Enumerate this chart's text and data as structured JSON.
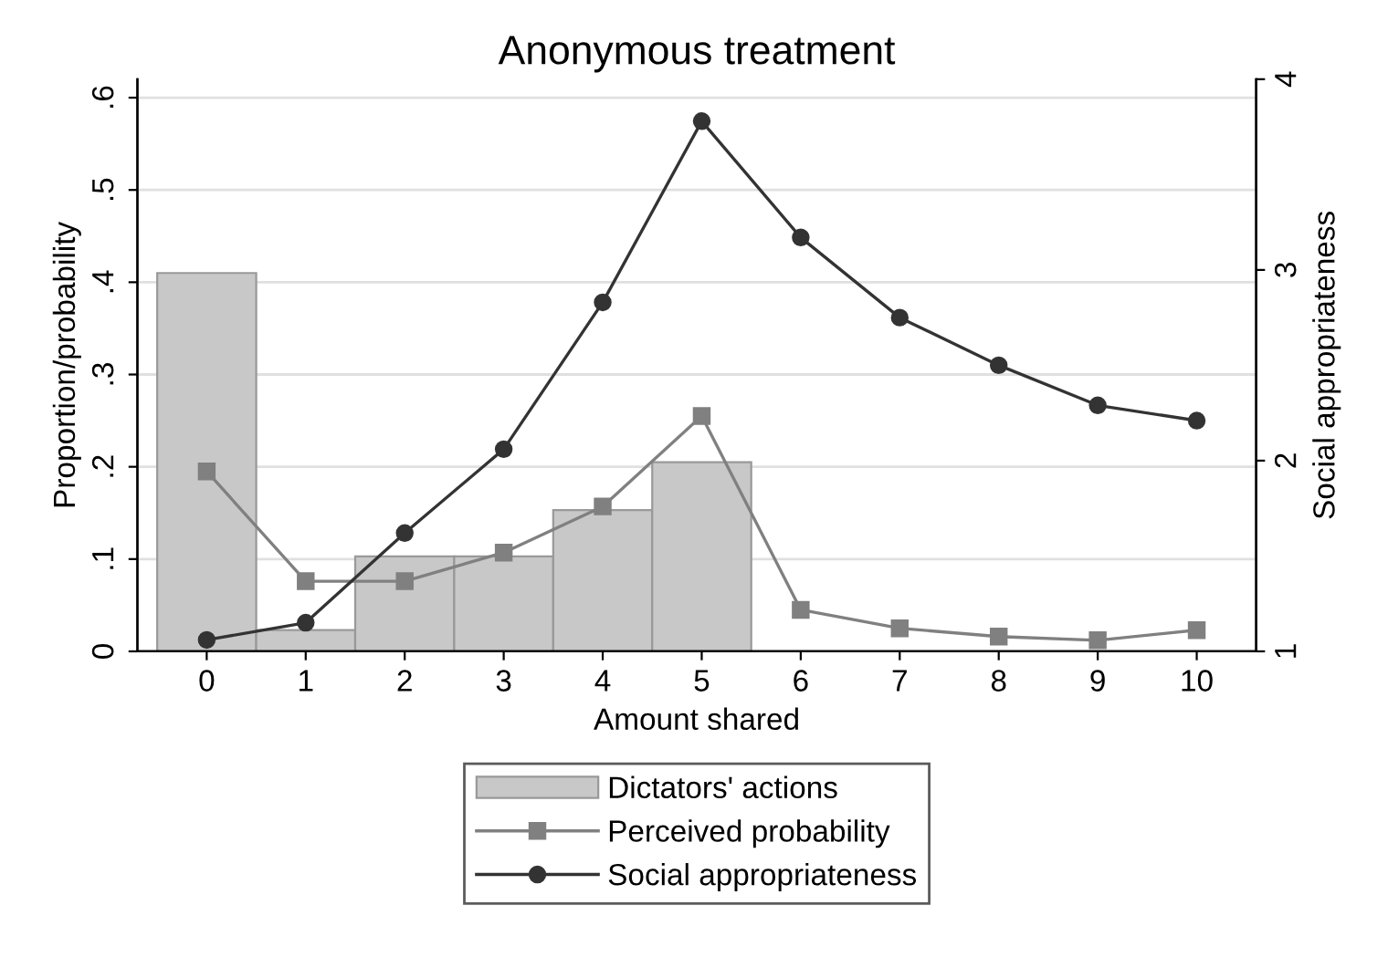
{
  "chart_data": {
    "type": "bar",
    "title": "Anonymous treatment",
    "xlabel": "Amount shared",
    "ylabel": "Proportion/probability",
    "y2label": "Social appropriateness",
    "x": [
      0,
      1,
      2,
      3,
      4,
      5,
      6,
      7,
      8,
      9,
      10
    ],
    "xlim": [
      -0.7,
      10.6
    ],
    "xticks": [
      0,
      1,
      2,
      3,
      4,
      5,
      6,
      7,
      8,
      9,
      10
    ],
    "ylim": [
      0,
      0.62
    ],
    "yticks": [
      {
        "value": 0,
        "label": "0"
      },
      {
        "value": 0.1,
        "label": ".1"
      },
      {
        "value": 0.2,
        "label": ".2"
      },
      {
        "value": 0.3,
        "label": ".3"
      },
      {
        "value": 0.4,
        "label": ".4"
      },
      {
        "value": 0.5,
        "label": ".5"
      },
      {
        "value": 0.6,
        "label": ".6"
      }
    ],
    "y2lim": [
      1,
      4.0
    ],
    "y2ticks": [
      1,
      2,
      3,
      4
    ],
    "grid": "y",
    "legend": "bottom",
    "series": [
      {
        "name": "Dictators' actions",
        "color": "#c8c8c8",
        "values": [
          0.41,
          0.023,
          0.103,
          0.103,
          0.153,
          0.205,
          0,
          0,
          0,
          0,
          0
        ]
      },
      {
        "name": "Perceived probability",
        "type": "line",
        "color": "#808080",
        "marker": "square",
        "values": [
          0.195,
          0.076,
          0.076,
          0.107,
          0.157,
          0.255,
          0.045,
          0.025,
          0.016,
          0.012,
          0.023
        ]
      },
      {
        "name": "Social appropriateness",
        "type": "line",
        "axis": "y2",
        "color": "#333333",
        "marker": "circle",
        "values": [
          1.06,
          1.15,
          1.62,
          2.06,
          2.83,
          3.78,
          3.17,
          2.75,
          2.5,
          2.29,
          2.21
        ]
      }
    ]
  }
}
